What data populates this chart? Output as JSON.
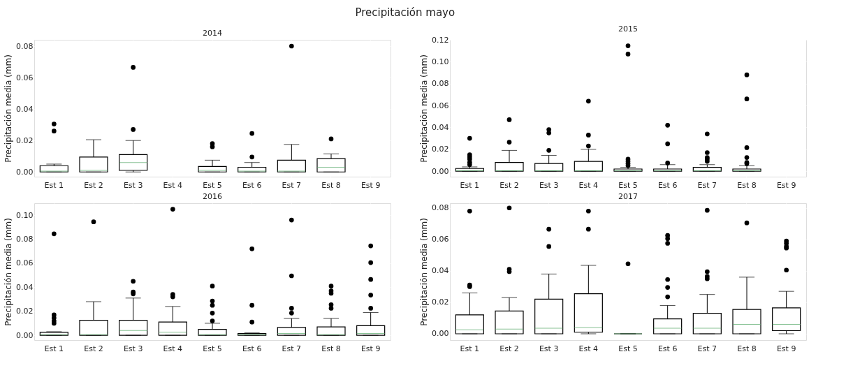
{
  "chart_data": [
    {
      "type": "box",
      "title": "2014",
      "annotations": [
        "Precipitación mayo"
      ],
      "ylabel": "Precipitación media (mm)",
      "categories": [
        "Est 1",
        "Est 2",
        "Est 3",
        "Est 4",
        "Est 5",
        "Est 6",
        "Est 7",
        "Est 8",
        "Est 9"
      ],
      "ylim": [
        -0.003,
        0.084
      ],
      "yticks": [
        {
          "value": 0,
          "label": "0.00"
        },
        {
          "value": 0.02,
          "label": "0.02"
        },
        {
          "value": 0.04,
          "label": "0.04"
        },
        {
          "value": 0.06,
          "label": "0.06"
        },
        {
          "value": 0.08,
          "label": "0.08"
        }
      ],
      "grid": true,
      "boxes": [
        {
          "low": 0,
          "q1": 0,
          "median": 0.0005,
          "q3": 0.004,
          "high": 0.005,
          "outliers": [
            0.026,
            0.0305
          ]
        },
        {
          "low": 0,
          "q1": 0,
          "median": 0.001,
          "q3": 0.0095,
          "high": 0.0205
        },
        {
          "low": 0,
          "q1": 0.001,
          "median": 0.006,
          "q3": 0.011,
          "high": 0.02,
          "outliers": [
            0.027,
            0.0665
          ]
        },
        null,
        {
          "low": 0,
          "q1": 0,
          "median": 0.001,
          "q3": 0.0035,
          "high": 0.0075,
          "outliers": [
            0.016,
            0.018
          ]
        },
        {
          "low": 0,
          "q1": 0,
          "median": 0.0005,
          "q3": 0.003,
          "high": 0.006,
          "outliers": [
            0.0095,
            0.0245
          ]
        },
        {
          "low": 0,
          "q1": 0,
          "median": 0.0005,
          "q3": 0.0075,
          "high": 0.0175,
          "outliers": [
            0.08
          ]
        },
        {
          "low": 0,
          "q1": 0,
          "median": 0.003,
          "q3": 0.0085,
          "high": 0.0115,
          "outliers": [
            0.021
          ]
        },
        null
      ]
    },
    {
      "type": "box",
      "title": "2015",
      "ylabel": "Precipitación media (mm)",
      "categories": [
        "Est 1",
        "Est 2",
        "Est 3",
        "Est 4",
        "Est 5",
        "Est 6",
        "Est 7",
        "Est 8",
        "Est 9"
      ],
      "ylim": [
        -0.005,
        0.12
      ],
      "yticks": [
        {
          "value": 0,
          "label": "0.00"
        },
        {
          "value": 0.02,
          "label": "0.02"
        },
        {
          "value": 0.04,
          "label": "0.04"
        },
        {
          "value": 0.06,
          "label": "0.06"
        },
        {
          "value": 0.08,
          "label": "0.08"
        },
        {
          "value": 0.1,
          "label": "0.10"
        },
        {
          "value": 0.12,
          "label": "0.12"
        }
      ],
      "grid": true,
      "boxes": [
        {
          "low": 0,
          "q1": 0,
          "median": 0.0005,
          "q3": 0.0025,
          "high": 0.004,
          "outliers": [
            0.006,
            0.008,
            0.011,
            0.013,
            0.015,
            0.03
          ]
        },
        {
          "low": 0,
          "q1": 0,
          "median": 0.0005,
          "q3": 0.008,
          "high": 0.019,
          "outliers": [
            0.0265,
            0.047
          ]
        },
        {
          "low": 0,
          "q1": 0,
          "median": 0.0005,
          "q3": 0.007,
          "high": 0.0145,
          "outliers": [
            0.019,
            0.035,
            0.038
          ]
        },
        {
          "low": 0,
          "q1": 0,
          "median": 0.0005,
          "q3": 0.009,
          "high": 0.02,
          "outliers": [
            0.023,
            0.033,
            0.064
          ]
        },
        {
          "low": 0,
          "q1": 0,
          "median": 0.0005,
          "q3": 0.002,
          "high": 0.0035,
          "outliers": [
            0.005,
            0.007,
            0.009,
            0.011,
            0.107,
            0.1145
          ]
        },
        {
          "low": 0,
          "q1": 0,
          "median": 0.0005,
          "q3": 0.002,
          "high": 0.006,
          "outliers": [
            0.0075,
            0.025,
            0.042
          ]
        },
        {
          "low": 0,
          "q1": 0,
          "median": 0.0005,
          "q3": 0.0035,
          "high": 0.006,
          "outliers": [
            0.009,
            0.011,
            0.0125,
            0.017,
            0.034
          ]
        },
        {
          "low": 0,
          "q1": 0,
          "median": 0.0005,
          "q3": 0.002,
          "high": 0.005,
          "outliers": [
            0.007,
            0.008,
            0.0125,
            0.0215,
            0.066,
            0.088
          ]
        },
        null
      ]
    },
    {
      "type": "box",
      "title": "2016",
      "ylabel": "Precipitación media (mm)",
      "categories": [
        "Est 1",
        "Est 2",
        "Est 3",
        "Est 4",
        "Est 5",
        "Est 6",
        "Est 7",
        "Est 8",
        "Est 9"
      ],
      "ylim": [
        -0.004,
        0.11
      ],
      "yticks": [
        {
          "value": 0,
          "label": "0.00"
        },
        {
          "value": 0.02,
          "label": "0.02"
        },
        {
          "value": 0.04,
          "label": "0.04"
        },
        {
          "value": 0.06,
          "label": "0.06"
        },
        {
          "value": 0.08,
          "label": "0.08"
        },
        {
          "value": 0.1,
          "label": "0.10"
        }
      ],
      "grid": true,
      "boxes": [
        {
          "low": 0,
          "q1": 0,
          "median": 0.0005,
          "q3": 0.0025,
          "high": 0.003,
          "outliers": [
            0.01,
            0.012,
            0.0145,
            0.017,
            0.0845
          ]
        },
        {
          "low": 0,
          "q1": 0,
          "median": 0.0005,
          "q3": 0.0125,
          "high": 0.028,
          "outliers": [
            0.0945
          ]
        },
        {
          "low": 0,
          "q1": 0,
          "median": 0.004,
          "q3": 0.0125,
          "high": 0.031,
          "outliers": [
            0.0345,
            0.036,
            0.045
          ]
        },
        {
          "low": 0,
          "q1": 0,
          "median": 0.0025,
          "q3": 0.011,
          "high": 0.024,
          "outliers": [
            0.032,
            0.034,
            0.105
          ]
        },
        {
          "low": 0,
          "q1": 0,
          "median": 0.0005,
          "q3": 0.005,
          "high": 0.01,
          "outliers": [
            0.012,
            0.0185,
            0.025,
            0.0285,
            0.041
          ]
        },
        {
          "low": 0,
          "q1": 0,
          "median": 0.0005,
          "q3": 0.0015,
          "high": 0.002,
          "outliers": [
            0.011,
            0.025,
            0.072
          ]
        },
        {
          "low": 0,
          "q1": 0,
          "median": 0.0015,
          "q3": 0.0065,
          "high": 0.014,
          "outliers": [
            0.0185,
            0.0225,
            0.0495,
            0.096
          ]
        },
        {
          "low": 0,
          "q1": 0,
          "median": 0.0005,
          "q3": 0.007,
          "high": 0.014,
          "outliers": [
            0.0225,
            0.0255,
            0.035,
            0.037,
            0.041
          ]
        },
        {
          "low": 0,
          "q1": 0,
          "median": 0.0015,
          "q3": 0.008,
          "high": 0.019,
          "outliers": [
            0.0225,
            0.0335,
            0.0465,
            0.0605,
            0.0745
          ]
        }
      ]
    },
    {
      "type": "box",
      "title": "2017",
      "ylabel": "Precipitación media (mm)",
      "categories": [
        "Est 1",
        "Est 2",
        "Est 3",
        "Est 4",
        "Est 5",
        "Est 6",
        "Est 7",
        "Est 8",
        "Est 9"
      ],
      "ylim": [
        -0.004,
        0.083
      ],
      "yticks": [
        {
          "value": 0,
          "label": "0.00"
        },
        {
          "value": 0.02,
          "label": "0.02"
        },
        {
          "value": 0.04,
          "label": "0.04"
        },
        {
          "value": 0.06,
          "label": "0.06"
        },
        {
          "value": 0.08,
          "label": "0.08"
        }
      ],
      "grid": true,
      "boxes": [
        {
          "low": 0,
          "q1": 0,
          "median": 0.0025,
          "q3": 0.012,
          "high": 0.026,
          "outliers": [
            0.03,
            0.031,
            0.078
          ]
        },
        {
          "low": 0,
          "q1": 0,
          "median": 0.003,
          "q3": 0.0145,
          "high": 0.023,
          "outliers": [
            0.0395,
            0.041,
            0.08
          ]
        },
        {
          "low": 0,
          "q1": 0,
          "median": 0.0035,
          "q3": 0.022,
          "high": 0.038,
          "outliers": [
            0.0555,
            0.0665
          ]
        },
        {
          "low": 0,
          "q1": 0.001,
          "median": 0.004,
          "q3": 0.0255,
          "high": 0.0435,
          "outliers": [
            0.0665,
            0.078
          ]
        },
        {
          "low": 0,
          "q1": 0,
          "median": 0,
          "q3": 0,
          "high": 0,
          "outliers": [
            0.0445
          ]
        },
        {
          "low": 0,
          "q1": 0,
          "median": 0.0035,
          "q3": 0.0095,
          "high": 0.018,
          "outliers": [
            0.0235,
            0.0295,
            0.0345,
            0.0575,
            0.0605,
            0.0625
          ]
        },
        {
          "low": 0,
          "q1": 0,
          "median": 0.0035,
          "q3": 0.013,
          "high": 0.025,
          "outliers": [
            0.035,
            0.0365,
            0.0395,
            0.0785
          ]
        },
        {
          "low": 0,
          "q1": 0,
          "median": 0.006,
          "q3": 0.0155,
          "high": 0.036,
          "outliers": [
            0.0705
          ]
        },
        {
          "low": 0,
          "q1": 0.002,
          "median": 0.006,
          "q3": 0.0165,
          "high": 0.027,
          "outliers": [
            0.0405,
            0.0545,
            0.0555,
            0.0575,
            0.059
          ]
        }
      ]
    }
  ]
}
